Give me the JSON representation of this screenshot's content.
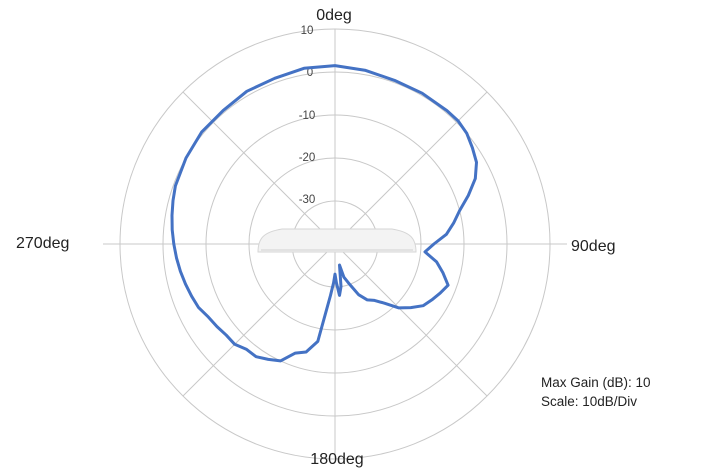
{
  "chart_data": {
    "type": "polar-line",
    "direction_labels": [
      "0deg",
      "90deg",
      "180deg",
      "270deg"
    ],
    "r_tick_labels": [
      "10",
      "0",
      "-10",
      "-20",
      "-30"
    ],
    "rlim": [
      -40,
      10
    ],
    "r_step": 10,
    "angle_gridline_step_deg": 45,
    "grid": true,
    "theta_zero": "top",
    "theta_direction": "clockwise",
    "series": [
      {
        "color": "#4472c4",
        "angle_deg": [
          0,
          10,
          20,
          30,
          40,
          45,
          50,
          55,
          60,
          65,
          70,
          75,
          80,
          85,
          90,
          95,
          100,
          105,
          110,
          115,
          120,
          125,
          130,
          135,
          140,
          145,
          150,
          155,
          160,
          165,
          168,
          172,
          175,
          178,
          180,
          182,
          185,
          190,
          195,
          200,
          205,
          210,
          215,
          220,
          225,
          230,
          235,
          240,
          245,
          250,
          255,
          260,
          265,
          270,
          275,
          280,
          285,
          290,
          300,
          310,
          320,
          330,
          340,
          350,
          360
        ],
        "gain_db": [
          1.5,
          1,
          0.5,
          0.5,
          0.5,
          0.5,
          0,
          -1,
          -2,
          -4,
          -7,
          -10,
          -12,
          -14,
          -17,
          -19,
          -16,
          -14,
          -12,
          -13,
          -14,
          -15,
          -17,
          -19,
          -22,
          -24,
          -25,
          -27,
          -30,
          -32,
          -35,
          -30,
          -28,
          -31,
          -33,
          -31,
          -28,
          -17,
          -14,
          -13,
          -10,
          -9,
          -8,
          -8,
          -7,
          -7,
          -6.5,
          -6,
          -5,
          -4.5,
          -4,
          -3.5,
          -3,
          -2.5,
          -2,
          -1.5,
          -1,
          -0.5,
          0,
          0.5,
          0.5,
          1,
          1,
          1.5,
          1.5
        ]
      }
    ]
  },
  "info": {
    "max_gain": "Max Gain (dB): 10",
    "scale": "Scale: 10dB/Div"
  },
  "colors": {
    "trace": "#4472c4",
    "grid": "#c8c8c8",
    "device": "#f2f2f2"
  }
}
